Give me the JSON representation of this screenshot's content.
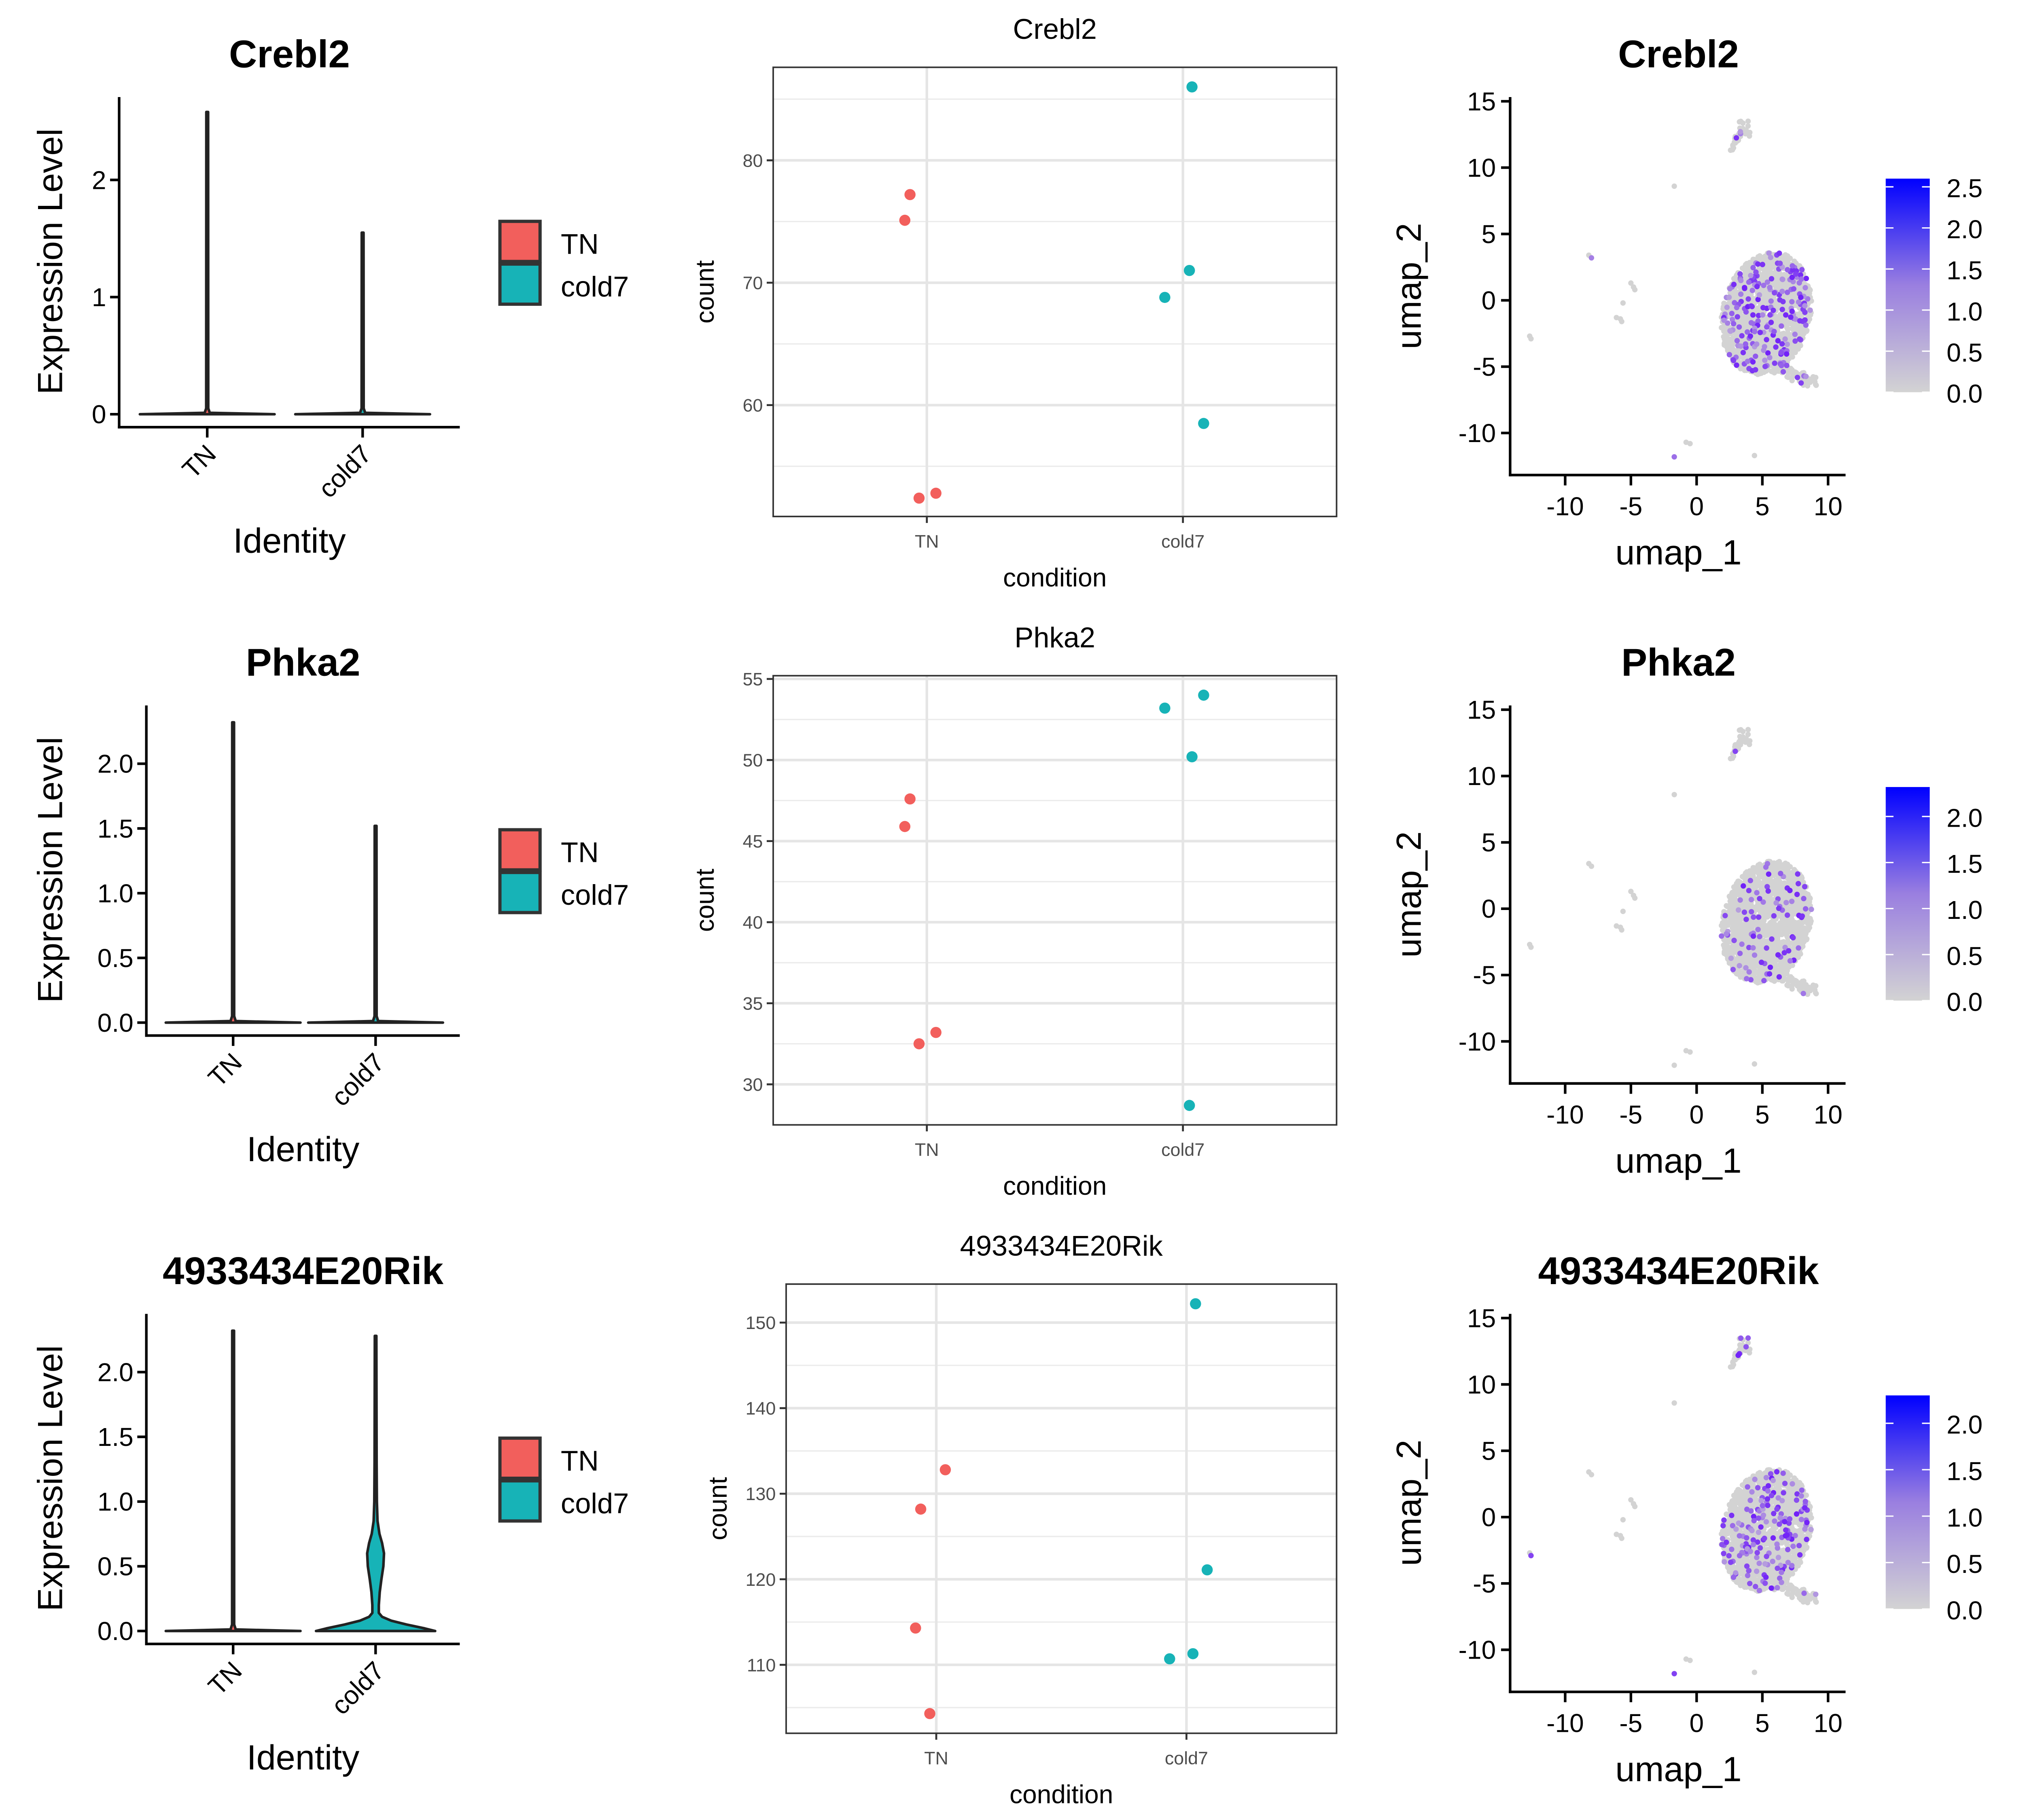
{
  "legend": {
    "items": [
      {
        "label": "TN",
        "color": "#F25F5C"
      },
      {
        "label": "cold7",
        "color": "#17B3B7"
      }
    ]
  },
  "chart_data": [
    {
      "type": "violin",
      "title": "Crebl2",
      "xlabel": "Identity",
      "ylabel": "Expression Level",
      "categories": [
        "TN",
        "cold7"
      ],
      "yticks": [
        "0",
        "1",
        "2"
      ],
      "ylim": [
        -0.12,
        2.8
      ],
      "max_values": [
        2.58,
        1.55
      ],
      "legend_placement": "right"
    },
    {
      "type": "scatter",
      "title": "Crebl2",
      "xlabel": "condition",
      "ylabel": "count",
      "categories": [
        "TN",
        "cold7"
      ],
      "yticks": [
        60,
        70,
        80
      ],
      "ylim": [
        50.9,
        87.6
      ],
      "grid": true,
      "points": [
        {
          "condition": "TN",
          "y": 77.2
        },
        {
          "condition": "TN",
          "y": 75.1
        },
        {
          "condition": "TN",
          "y": 52.8
        },
        {
          "condition": "TN",
          "y": 52.4
        },
        {
          "condition": "cold7",
          "y": 86.0
        },
        {
          "condition": "cold7",
          "y": 71.0
        },
        {
          "condition": "cold7",
          "y": 68.8
        },
        {
          "condition": "cold7",
          "y": 58.5
        }
      ]
    },
    {
      "type": "scatter",
      "title": "Crebl2",
      "xlabel": "umap_1",
      "ylabel": "umap_2",
      "xticks": [
        -10,
        -5,
        0,
        5,
        10
      ],
      "yticks": [
        -10,
        -5,
        0,
        5,
        10,
        15
      ],
      "xlim": [
        -14.2,
        11.3
      ],
      "ylim": [
        -13.2,
        15.3
      ],
      "colorbar": {
        "ticks": [
          "0.0",
          "0.5",
          "1.0",
          "1.5",
          "2.0",
          "2.5"
        ],
        "max": 2.6,
        "low_color": "#D3D3D3",
        "high_color": "#0000FF"
      }
    },
    {
      "type": "violin",
      "title": "Phka2",
      "xlabel": "Identity",
      "ylabel": "Expression Level",
      "categories": [
        "TN",
        "cold7"
      ],
      "yticks": [
        "0.0",
        "0.5",
        "1.0",
        "1.5",
        "2.0"
      ],
      "ylim": [
        -0.1,
        2.45
      ],
      "max_values": [
        2.32,
        1.52
      ],
      "legend_placement": "right"
    },
    {
      "type": "scatter",
      "title": "Phka2",
      "xlabel": "condition",
      "ylabel": "count",
      "categories": [
        "TN",
        "cold7"
      ],
      "yticks": [
        30,
        35,
        40,
        45,
        50,
        55
      ],
      "ylim": [
        27.5,
        55.2
      ],
      "grid": true,
      "points": [
        {
          "condition": "TN",
          "y": 47.6
        },
        {
          "condition": "TN",
          "y": 45.9
        },
        {
          "condition": "TN",
          "y": 33.2
        },
        {
          "condition": "TN",
          "y": 32.5
        },
        {
          "condition": "cold7",
          "y": 53.2
        },
        {
          "condition": "cold7",
          "y": 54.0
        },
        {
          "condition": "cold7",
          "y": 50.2
        },
        {
          "condition": "cold7",
          "y": 28.7
        }
      ]
    },
    {
      "type": "scatter",
      "title": "Phka2",
      "xlabel": "umap_1",
      "ylabel": "umap_2",
      "xticks": [
        -10,
        -5,
        0,
        5,
        10
      ],
      "yticks": [
        -10,
        -5,
        0,
        5,
        10,
        15
      ],
      "xlim": [
        -14.2,
        11.3
      ],
      "ylim": [
        -13.2,
        15.3
      ],
      "colorbar": {
        "ticks": [
          "0.0",
          "0.5",
          "1.0",
          "1.5",
          "2.0"
        ],
        "max": 2.32,
        "low_color": "#D3D3D3",
        "high_color": "#0000FF"
      }
    },
    {
      "type": "violin",
      "title": "4933434E20Rik",
      "xlabel": "Identity",
      "ylabel": "Expression Level",
      "categories": [
        "TN",
        "cold7"
      ],
      "yticks": [
        "0.0",
        "0.5",
        "1.0",
        "1.5",
        "2.0"
      ],
      "ylim": [
        -0.1,
        2.45
      ],
      "max_values": [
        2.32,
        2.28
      ],
      "legend_placement": "right"
    },
    {
      "type": "scatter",
      "title": "4933434E20Rik",
      "xlabel": "condition",
      "ylabel": "count",
      "categories": [
        "TN",
        "cold7"
      ],
      "yticks": [
        110,
        120,
        130,
        140,
        150
      ],
      "ylim": [
        102.0,
        154.5
      ],
      "grid": true,
      "points": [
        {
          "condition": "TN",
          "y": 132.8
        },
        {
          "condition": "TN",
          "y": 128.2
        },
        {
          "condition": "TN",
          "y": 114.3
        },
        {
          "condition": "TN",
          "y": 104.3
        },
        {
          "condition": "cold7",
          "y": 152.2
        },
        {
          "condition": "cold7",
          "y": 121.1
        },
        {
          "condition": "cold7",
          "y": 111.3
        },
        {
          "condition": "cold7",
          "y": 110.7
        }
      ]
    },
    {
      "type": "scatter",
      "title": "4933434E20Rik",
      "xlabel": "umap_1",
      "ylabel": "umap_2",
      "xticks": [
        -10,
        -5,
        0,
        5,
        10
      ],
      "yticks": [
        -10,
        -5,
        0,
        5,
        10,
        15
      ],
      "xlim": [
        -14.2,
        11.3
      ],
      "ylim": [
        -13.2,
        15.3
      ],
      "colorbar": {
        "ticks": [
          "0.0",
          "0.5",
          "1.0",
          "1.5",
          "2.0"
        ],
        "max": 2.3,
        "low_color": "#D3D3D3",
        "high_color": "#0000FF"
      }
    }
  ]
}
